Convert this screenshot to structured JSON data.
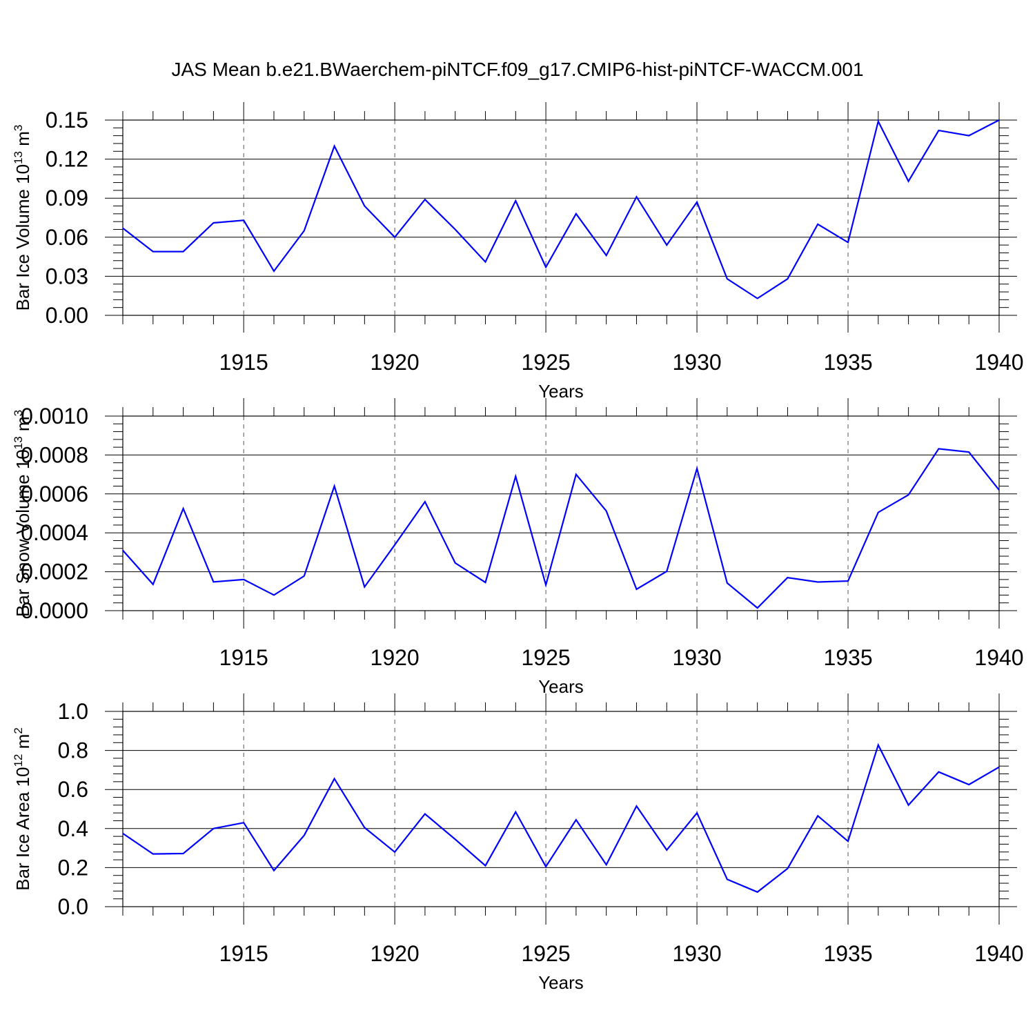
{
  "title": "JAS Mean b.e21.BWaerchem-piNTCF.f09_g17.CMIP6-hist-piNTCF-WACCM.001",
  "colors": {
    "line": "#0000ff",
    "axis": "#000000",
    "grid": "#555555"
  },
  "chart_data": [
    {
      "type": "line",
      "xlabel": "Years",
      "ylabel": {
        "text": "Bar Ice Volume 10",
        "sup1": "13",
        "mid": " m",
        "sup2": "3"
      },
      "xlim": [
        1911,
        1940
      ],
      "ylim": [
        0,
        0.15
      ],
      "xticks": [
        1915,
        1920,
        1925,
        1930,
        1935,
        1940
      ],
      "xtick_labels": [
        "1915",
        "1920",
        "1925",
        "1930",
        "1935",
        "1940"
      ],
      "yticks": [
        0,
        0.03,
        0.06,
        0.09,
        0.12,
        0.15
      ],
      "ytick_labels": [
        "0.00",
        "0.03",
        "0.06",
        "0.09",
        "0.12",
        "0.15"
      ],
      "grid": "vertical dashed at major x ticks",
      "x": [
        1911,
        1912,
        1913,
        1914,
        1915,
        1916,
        1917,
        1918,
        1919,
        1920,
        1921,
        1922,
        1923,
        1924,
        1925,
        1926,
        1927,
        1928,
        1929,
        1930,
        1931,
        1932,
        1933,
        1934,
        1935,
        1936,
        1937,
        1938,
        1939,
        1940
      ],
      "values": [
        0.067,
        0.049,
        0.049,
        0.071,
        0.073,
        0.034,
        0.065,
        0.13,
        0.084,
        0.06,
        0.089,
        0.066,
        0.041,
        0.088,
        0.037,
        0.078,
        0.046,
        0.091,
        0.054,
        0.087,
        0.028,
        0.013,
        0.028,
        0.07,
        0.056,
        0.149,
        0.103,
        0.142,
        0.138,
        0.15
      ]
    },
    {
      "type": "line",
      "xlabel": "Years",
      "ylabel": {
        "text": "Bar Snow Volume 10",
        "sup1": "13",
        "mid": " m",
        "sup2": "3"
      },
      "xlim": [
        1911,
        1940
      ],
      "ylim": [
        0,
        0.001
      ],
      "xticks": [
        1915,
        1920,
        1925,
        1930,
        1935,
        1940
      ],
      "xtick_labels": [
        "1915",
        "1920",
        "1925",
        "1930",
        "1935",
        "1940"
      ],
      "yticks": [
        0,
        0.0002,
        0.0004,
        0.0006,
        0.0008,
        0.001
      ],
      "ytick_labels": [
        "0.0000",
        "0.0002",
        "0.0004",
        "0.0006",
        "0.0008",
        "0.0010"
      ],
      "grid": "vertical dashed at major x ticks",
      "x": [
        1911,
        1912,
        1913,
        1914,
        1915,
        1916,
        1917,
        1918,
        1919,
        1920,
        1921,
        1922,
        1923,
        1924,
        1925,
        1926,
        1927,
        1928,
        1929,
        1930,
        1931,
        1932,
        1933,
        1934,
        1935,
        1936,
        1937,
        1938,
        1939,
        1940
      ],
      "values": [
        0.00031,
        0.000135,
        0.000525,
        0.000148,
        0.00016,
        8e-05,
        0.000178,
        0.00064,
        0.000122,
        0.000338,
        0.00056,
        0.000245,
        0.000145,
        0.00069,
        0.000132,
        0.0007,
        0.000512,
        0.00011,
        0.000202,
        0.00073,
        0.000142,
        1.4e-05,
        0.00017,
        0.000147,
        0.000152,
        0.000505,
        0.000595,
        0.000832,
        0.000815,
        0.00062
      ]
    },
    {
      "type": "line",
      "xlabel": "Years",
      "ylabel": {
        "text": "Bar Ice Area 10",
        "sup1": "12",
        "mid": " m",
        "sup2": "2"
      },
      "xlim": [
        1911,
        1940
      ],
      "ylim": [
        0,
        1.0
      ],
      "xticks": [
        1915,
        1920,
        1925,
        1930,
        1935,
        1940
      ],
      "xtick_labels": [
        "1915",
        "1920",
        "1925",
        "1930",
        "1935",
        "1940"
      ],
      "yticks": [
        0,
        0.2,
        0.4,
        0.6,
        0.8,
        1.0
      ],
      "ytick_labels": [
        "0.0",
        "0.2",
        "0.4",
        "0.6",
        "0.8",
        "1.0"
      ],
      "grid": "vertical dashed at major x ticks",
      "x": [
        1911,
        1912,
        1913,
        1914,
        1915,
        1916,
        1917,
        1918,
        1919,
        1920,
        1921,
        1922,
        1923,
        1924,
        1925,
        1926,
        1927,
        1928,
        1929,
        1930,
        1931,
        1932,
        1933,
        1934,
        1935,
        1936,
        1937,
        1938,
        1939,
        1940
      ],
      "values": [
        0.375,
        0.27,
        0.272,
        0.4,
        0.43,
        0.185,
        0.365,
        0.655,
        0.405,
        0.28,
        0.475,
        0.345,
        0.21,
        0.485,
        0.205,
        0.445,
        0.215,
        0.515,
        0.29,
        0.48,
        0.14,
        0.075,
        0.195,
        0.465,
        0.335,
        0.828,
        0.52,
        0.69,
        0.625,
        0.715
      ]
    }
  ]
}
